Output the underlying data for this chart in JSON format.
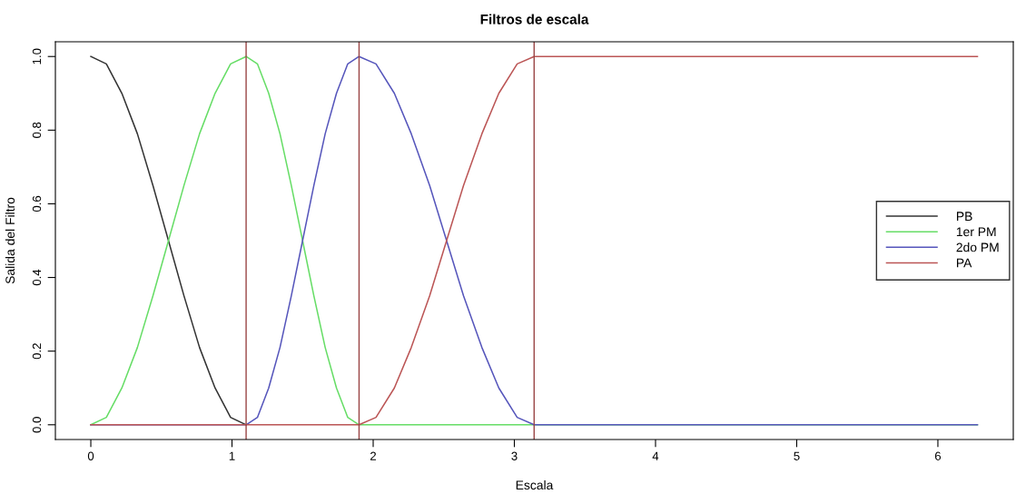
{
  "chart_data": {
    "type": "line",
    "title": "Filtros de escala",
    "xlabel": "Escala",
    "ylabel": "Salida del Filtro",
    "xlim": [
      -0.251,
      6.534
    ],
    "xticks": [
      0,
      1,
      2,
      3,
      4,
      5,
      6
    ],
    "ylim": [
      -0.04,
      1.04
    ],
    "yticks": [
      {
        "value": 0,
        "label": "0.0"
      },
      {
        "value": 0.2,
        "label": "0.2"
      },
      {
        "value": 0.4,
        "label": "0.4"
      },
      {
        "value": 0.6,
        "label": "0.6"
      },
      {
        "value": 0.8,
        "label": "0.8"
      },
      {
        "value": 1,
        "label": "1.0"
      }
    ],
    "grid": false,
    "legend": "right",
    "line_style": "solid",
    "marker": "none",
    "series": [
      {
        "name": "PB",
        "color": "#333333",
        "x": [
          0,
          0.11,
          0.22,
          0.33,
          0.44,
          0.55,
          0.66,
          0.77,
          0.88,
          0.99,
          1.1
        ],
        "values": [
          1,
          0.98,
          0.9,
          0.79,
          0.65,
          0.5,
          0.35,
          0.21,
          0.1,
          0.02,
          0
        ]
      },
      {
        "name": "1er PM",
        "color": "#66dd66",
        "x": [
          0,
          0.11,
          0.22,
          0.33,
          0.44,
          0.55,
          0.66,
          0.77,
          0.88,
          0.99,
          1.1,
          1.18,
          1.26,
          1.34,
          1.42,
          1.5,
          1.58,
          1.66,
          1.74,
          1.82,
          1.9,
          6.28
        ],
        "values": [
          0,
          0.02,
          0.1,
          0.21,
          0.35,
          0.5,
          0.65,
          0.79,
          0.9,
          0.98,
          1,
          0.98,
          0.9,
          0.79,
          0.65,
          0.5,
          0.35,
          0.21,
          0.1,
          0.02,
          0,
          0
        ]
      },
      {
        "name": "2do PM",
        "color": "#5555bb",
        "x": [
          0,
          1.1,
          1.18,
          1.26,
          1.34,
          1.42,
          1.5,
          1.58,
          1.66,
          1.74,
          1.82,
          1.9,
          2.02,
          2.15,
          2.27,
          2.4,
          2.52,
          2.64,
          2.77,
          2.89,
          3.02,
          3.14,
          6.28
        ],
        "values": [
          0,
          0,
          0.02,
          0.1,
          0.21,
          0.35,
          0.5,
          0.65,
          0.79,
          0.9,
          0.98,
          1,
          0.98,
          0.9,
          0.79,
          0.65,
          0.5,
          0.35,
          0.21,
          0.1,
          0.02,
          0,
          0
        ]
      },
      {
        "name": "PA",
        "color": "#bb5555",
        "x": [
          0,
          1.9,
          2.02,
          2.15,
          2.27,
          2.4,
          2.52,
          2.64,
          2.77,
          2.89,
          3.02,
          3.14,
          6.28
        ],
        "values": [
          0,
          0,
          0.02,
          0.1,
          0.21,
          0.35,
          0.5,
          0.65,
          0.79,
          0.9,
          0.98,
          1,
          1
        ]
      }
    ],
    "ref_lines": [
      {
        "axis": "x",
        "value": 1.1,
        "color": "#994444"
      },
      {
        "axis": "x",
        "value": 1.9,
        "color": "#994444"
      },
      {
        "axis": "x",
        "value": 3.14,
        "color": "#994444"
      }
    ]
  }
}
